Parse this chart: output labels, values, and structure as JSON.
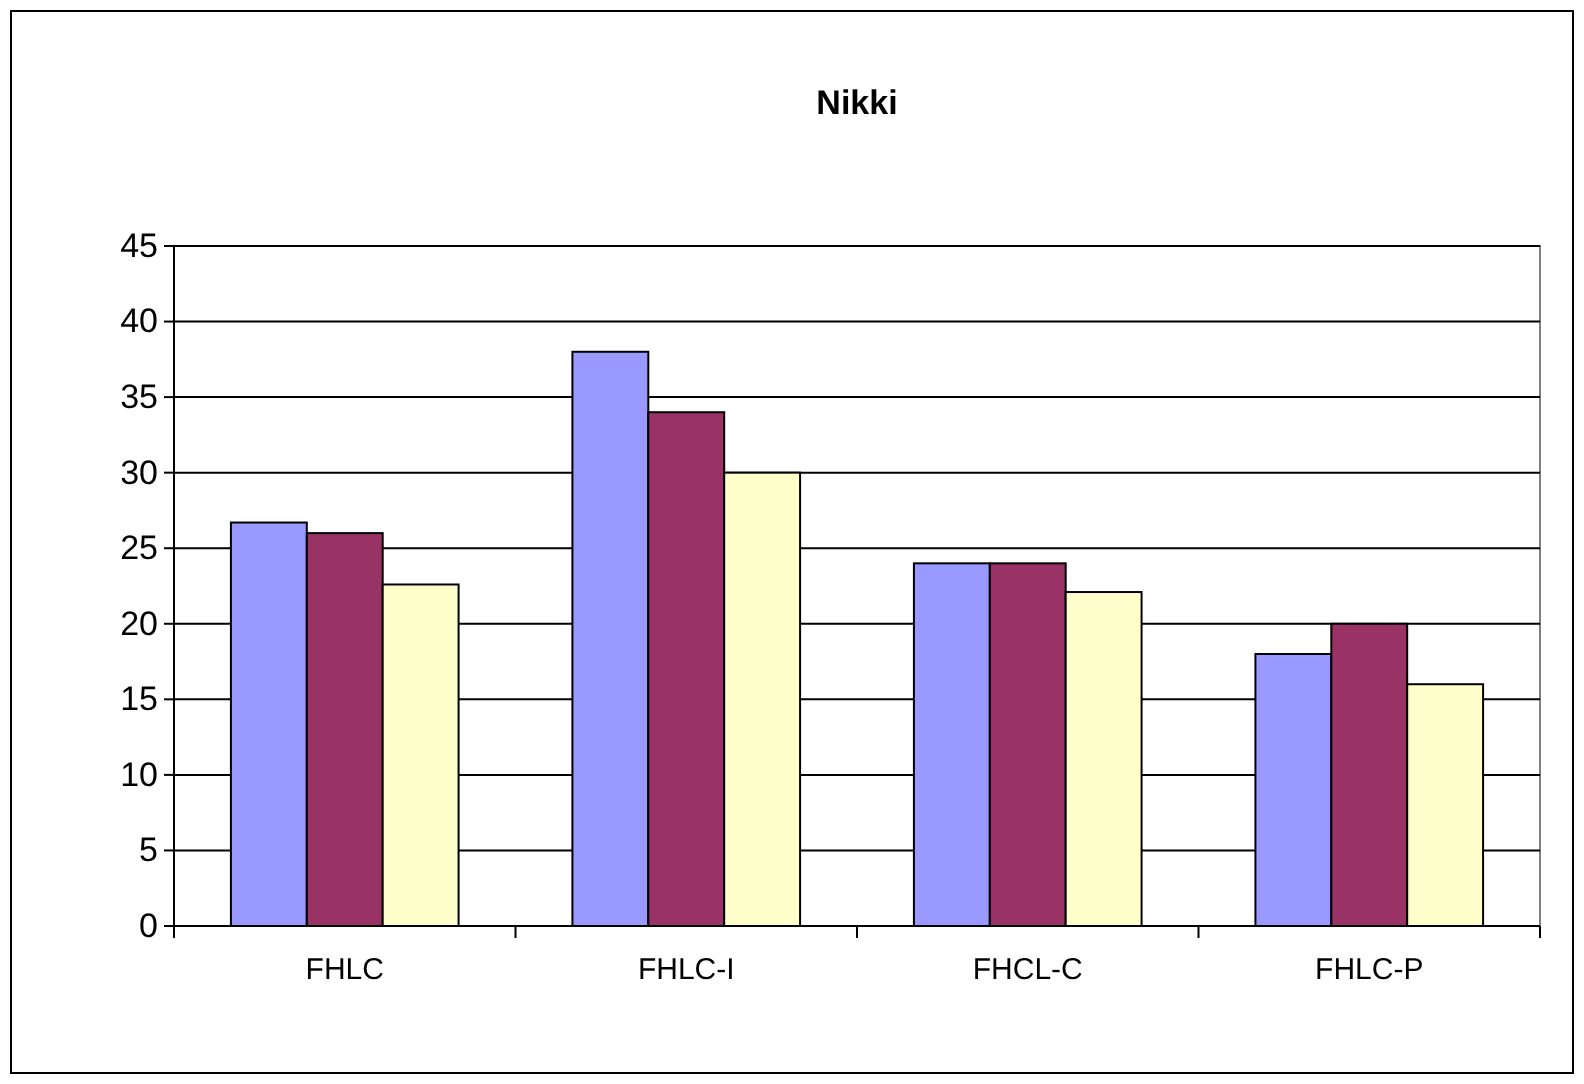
{
  "chart_data": {
    "type": "bar",
    "title": "Nikki",
    "categories": [
      "FHLC",
      "FHLC-I",
      "FHCL-C",
      "FHLC-P"
    ],
    "series": [
      {
        "color": "#9999ff",
        "values": [
          26.7,
          38,
          24,
          18
        ]
      },
      {
        "color": "#993366",
        "values": [
          26,
          34,
          24,
          20
        ]
      },
      {
        "color": "#ffffcc",
        "values": [
          22.6,
          30,
          22.1,
          16
        ]
      }
    ],
    "ylim": [
      0,
      45
    ],
    "yticks": [
      0,
      5,
      10,
      15,
      20,
      25,
      30,
      35,
      40,
      45
    ],
    "grid": "y"
  }
}
